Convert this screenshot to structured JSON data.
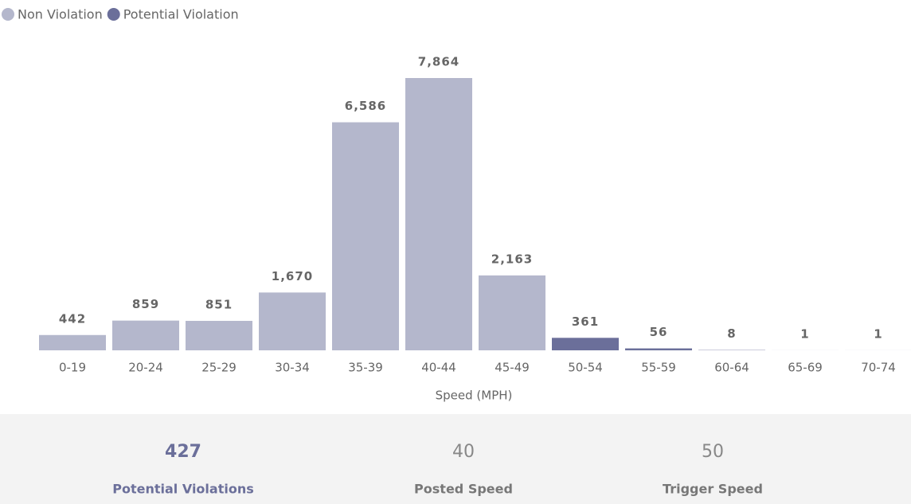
{
  "chart_data": {
    "type": "bar",
    "x_label": "Speed (MPH)",
    "categories": [
      "0-19",
      "20-24",
      "25-29",
      "30-34",
      "35-39",
      "40-44",
      "45-49",
      "50-54",
      "55-59",
      "60-64",
      "65-69",
      "70-74"
    ],
    "series": [
      {
        "name": "Non Violation",
        "color": "#b4b7cc",
        "values": [
          442,
          859,
          851,
          1670,
          6586,
          7864,
          2163,
          null,
          null,
          null,
          null,
          null
        ],
        "value_labels": [
          "442",
          "859",
          "851",
          "1,670",
          "6,586",
          "7,864",
          "2,163",
          null,
          null,
          null,
          null,
          null
        ]
      },
      {
        "name": "Potential Violation",
        "color": "#6b6f9a",
        "values": [
          null,
          null,
          null,
          null,
          null,
          null,
          null,
          361,
          56,
          8,
          1,
          1
        ],
        "value_labels": [
          null,
          null,
          null,
          null,
          null,
          null,
          null,
          "361",
          "56",
          "8",
          "1",
          "1"
        ]
      }
    ],
    "legend": "top-left"
  },
  "kpis": [
    {
      "value": 427,
      "label": "Potential Violations"
    },
    {
      "value": 40,
      "label": "Posted Speed"
    },
    {
      "value": 50,
      "label": "Trigger Speed"
    }
  ]
}
